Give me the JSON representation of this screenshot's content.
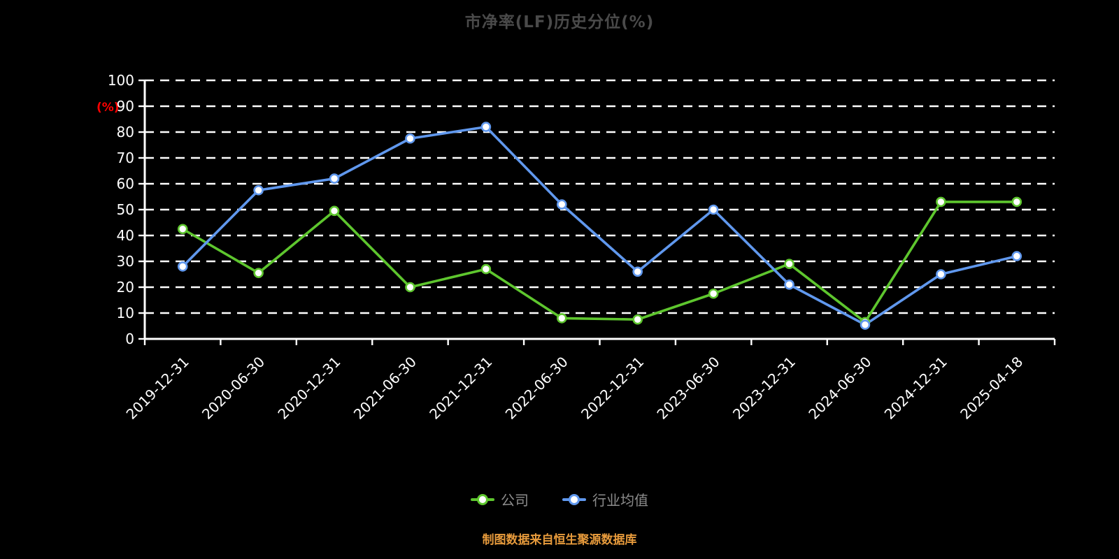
{
  "chart_data": {
    "type": "line",
    "title": "市净率(LF)历史分位(%)",
    "ylabel": "(%)",
    "xlabel": "",
    "categories": [
      "2019-12-31",
      "2020-06-30",
      "2020-12-31",
      "2021-06-30",
      "2021-12-31",
      "2022-06-30",
      "2022-12-31",
      "2023-06-30",
      "2023-12-31",
      "2024-06-30",
      "2024-12-31",
      "2025-04-18"
    ],
    "series": [
      {
        "name": "公司",
        "color": "#5ec62e",
        "values": [
          42.5,
          25.5,
          49.5,
          20,
          27,
          8,
          7.5,
          17.5,
          29,
          6.5,
          53,
          53
        ]
      },
      {
        "name": "行业均值",
        "color": "#6098ee",
        "values": [
          28,
          57.5,
          62,
          77.5,
          82,
          52,
          26,
          50,
          21,
          5.5,
          25,
          32
        ]
      }
    ],
    "ylim": [
      0,
      100
    ],
    "yticks": [
      0,
      10,
      20,
      30,
      40,
      50,
      60,
      70,
      80,
      90,
      100
    ],
    "grid": "horizontal-dashed",
    "legend_position": "bottom"
  },
  "colors": {
    "background": "#000000",
    "title": "#4a4a4a",
    "axis": "#ffffff",
    "ylabel": "#ff0000",
    "legend_text": "#8c8c8c",
    "footer": "#e89b3c",
    "marker_fill": "#ffffff"
  },
  "footer": {
    "source_note": "制图数据来自恒生聚源数据库"
  }
}
